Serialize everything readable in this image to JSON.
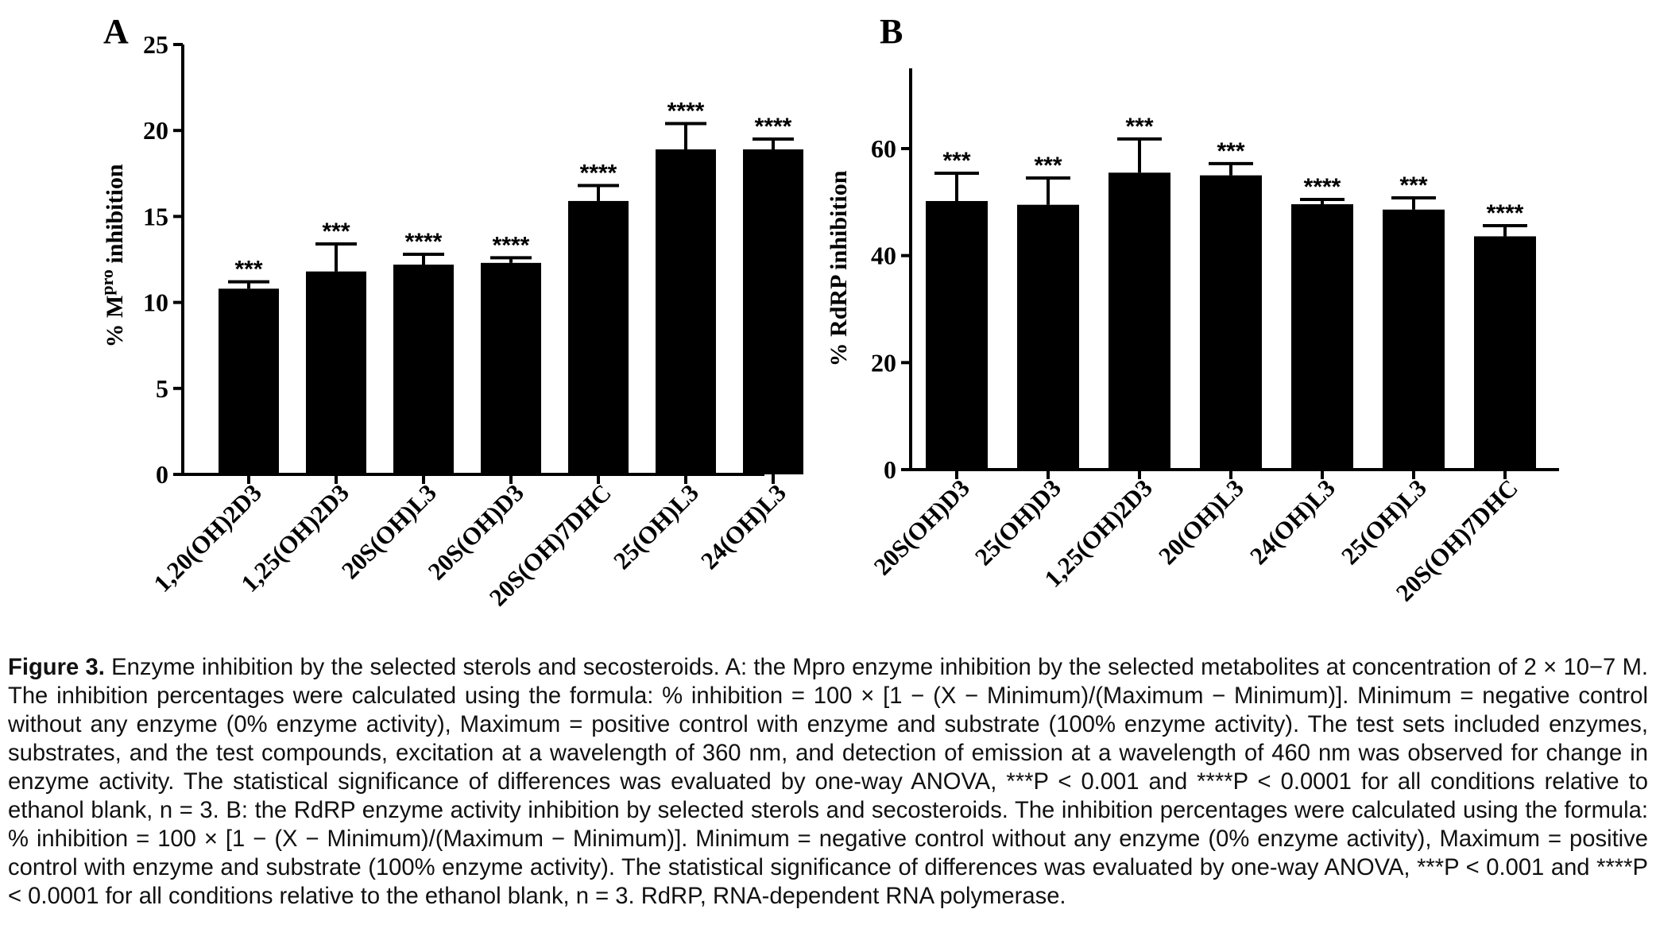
{
  "chart_data": [
    {
      "type": "bar",
      "panel_label": "A",
      "ylabel_parts": [
        "% M",
        "pro",
        " inhibition"
      ],
      "ylim": [
        0,
        25
      ],
      "yticks": [
        0,
        5,
        10,
        15,
        20,
        25
      ],
      "categories": [
        "1,20(OH)2D3",
        "1,25(OH)2D3",
        "20S(OH)L3",
        "20S(OH)D3",
        "20S(OH)7DHC",
        "25(OH)L3",
        "24(OH)L3"
      ],
      "values": [
        10.8,
        11.8,
        12.2,
        12.3,
        15.9,
        18.9,
        18.9
      ],
      "errors": [
        0.4,
        1.6,
        0.6,
        0.3,
        0.9,
        1.5,
        0.6
      ],
      "significance": [
        "***",
        "***",
        "****",
        "****",
        "****",
        "****",
        "****"
      ],
      "bar_color": "#000000",
      "grid": false
    },
    {
      "type": "bar",
      "panel_label": "B",
      "ylabel_parts": [
        "% RdRP inhibition"
      ],
      "ylim": [
        0,
        75
      ],
      "yticks": [
        0,
        20,
        40,
        60
      ],
      "categories": [
        "20S(OH)D3",
        "25(OH)D3",
        "1,25(OH)2D3",
        "20(OH)L3",
        "24(OH)L3",
        "25(OH)L3",
        "20S(OH)7DHC"
      ],
      "values": [
        50.2,
        49.5,
        55.5,
        55.0,
        49.6,
        48.6,
        43.6
      ],
      "errors": [
        5.2,
        5.0,
        6.3,
        2.2,
        0.9,
        2.2,
        2.0
      ],
      "significance": [
        "***",
        "***",
        "***",
        "***",
        "****",
        "***",
        "****"
      ],
      "bar_color": "#000000",
      "grid": false
    }
  ],
  "caption": {
    "label": "Figure 3.",
    "text": " Enzyme inhibition by the selected sterols and secosteroids. A: the Mpro enzyme inhibition by the selected metabolites at concentration of 2 × 10−7 M. The inhibition percentages were calculated using the formula: % inhibition = 100 × [1 − (X − Minimum)/(Maximum − Minimum)]. Minimum = negative control without any enzyme (0% enzyme activity), Maximum = positive control with enzyme and substrate (100% enzyme activity). The test sets included enzymes, substrates, and the test compounds, excitation at a wavelength of 360 nm, and detection of emission at a wavelength of 460 nm was observed for change in enzyme activity. The statistical significance of differences was evaluated by one-way ANOVA, ***P < 0.001 and ****P < 0.0001 for all conditions relative to ethanol blank, n = 3. B: the RdRP enzyme activity inhibition by selected sterols and secosteroids. The inhibition percentages were calculated using the formula: % inhibition = 100 × [1 − (X − Minimum)/(Maximum − Minimum)]. Minimum = negative control without any enzyme (0% enzyme activity), Maximum = positive control with enzyme and substrate (100% enzyme activity). The statistical significance of differences was evaluated by one-way ANOVA, ***P < 0.001 and ****P < 0.0001 for all conditions relative to the ethanol blank, n = 3. RdRP, RNA-dependent RNA polymerase."
  }
}
